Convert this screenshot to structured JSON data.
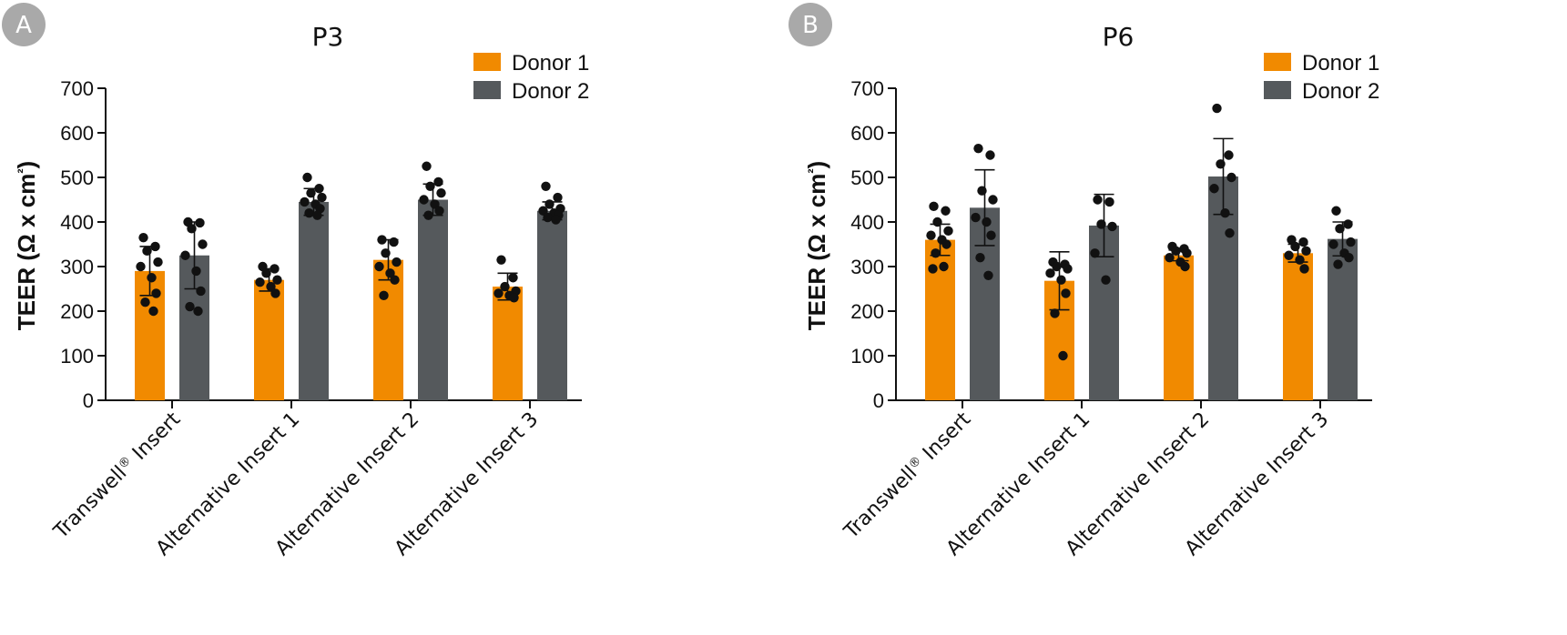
{
  "colors": {
    "donor1": "#f18a00",
    "donor2": "#55595c",
    "badge": "#a9a9a9",
    "dots": "#111111"
  },
  "chart_data": [
    {
      "type": "bar",
      "panel": "A",
      "title": "P3",
      "ylabel": "TEER (Ω x cm²)",
      "ylim": [
        0,
        700
      ],
      "yticks": [
        0,
        100,
        200,
        300,
        400,
        500,
        600,
        700
      ],
      "categories": [
        "Transwell® Insert",
        "Alternative Insert 1",
        "Alternative Insert 2",
        "Alternative Insert 3"
      ],
      "legend_position": "top-right",
      "series": [
        {
          "name": "Donor 1",
          "values": [
            290,
            270,
            315,
            255
          ],
          "errors": [
            55,
            25,
            45,
            30
          ],
          "points": [
            [
              365,
              345,
              335,
              310,
              300,
              275,
              240,
              220,
              200
            ],
            [
              300,
              295,
              285,
              270,
              265,
              255,
              240
            ],
            [
              360,
              355,
              330,
              310,
              300,
              285,
              270,
              235
            ],
            [
              315,
              275,
              255,
              245,
              240,
              235,
              230
            ]
          ]
        },
        {
          "name": "Donor 2",
          "values": [
            325,
            445,
            450,
            425
          ],
          "errors": [
            75,
            30,
            35,
            20
          ],
          "points": [
            [
              400,
              398,
              385,
              350,
              325,
              290,
              245,
              210,
              200
            ],
            [
              500,
              475,
              465,
              455,
              445,
              440,
              430,
              420,
              415
            ],
            [
              525,
              490,
              480,
              465,
              450,
              440,
              425,
              415
            ],
            [
              480,
              455,
              440,
              430,
              425,
              420,
              415,
              410,
              405
            ]
          ]
        }
      ]
    },
    {
      "type": "bar",
      "panel": "B",
      "title": "P6",
      "ylabel": "TEER (Ω x cm²)",
      "ylim": [
        0,
        700
      ],
      "yticks": [
        0,
        100,
        200,
        300,
        400,
        500,
        600,
        700
      ],
      "categories": [
        "Transwell® Insert",
        "Alternative Insert 1",
        "Alternative Insert 2",
        "Alternative Insert 3"
      ],
      "legend_position": "top-right",
      "series": [
        {
          "name": "Donor 1",
          "values": [
            360,
            268,
            325,
            330
          ],
          "errors": [
            35,
            65,
            12,
            20
          ],
          "points": [
            [
              435,
              425,
              400,
              380,
              370,
              360,
              350,
              330,
              300,
              295
            ],
            [
              310,
              305,
              300,
              295,
              285,
              270,
              240,
              195,
              100
            ],
            [
              345,
              340,
              335,
              330,
              320,
              310,
              300
            ],
            [
              360,
              355,
              345,
              335,
              325,
              315,
              295
            ]
          ]
        },
        {
          "name": "Donor 2",
          "values": [
            432,
            392,
            502,
            362
          ],
          "errors": [
            85,
            70,
            85,
            38
          ],
          "points": [
            [
              565,
              550,
              470,
              450,
              410,
              400,
              370,
              320,
              280
            ],
            [
              450,
              445,
              395,
              390,
              330,
              270
            ],
            [
              655,
              550,
              530,
              500,
              475,
              420,
              375
            ],
            [
              425,
              395,
              385,
              355,
              350,
              330,
              320,
              305
            ]
          ]
        }
      ]
    }
  ]
}
